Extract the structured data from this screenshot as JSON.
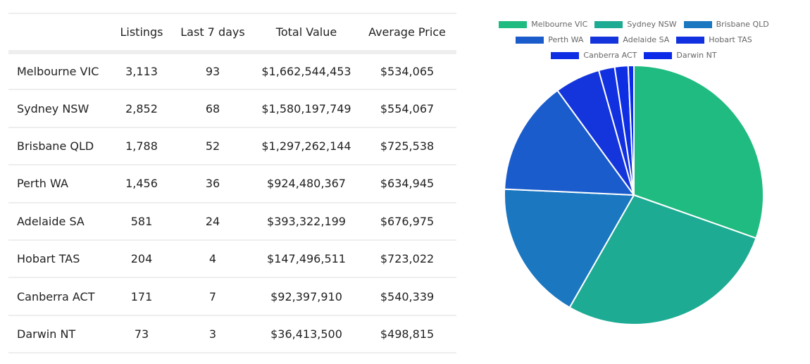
{
  "table": {
    "headers": [
      "",
      "Listings",
      "Last 7 days",
      "Total Value",
      "Average Price"
    ],
    "rows": [
      [
        "Melbourne VIC",
        "3,113",
        "93",
        "$1,662,544,453",
        "$534,065"
      ],
      [
        "Sydney NSW",
        "2,852",
        "68",
        "$1,580,197,749",
        "$554,067"
      ],
      [
        "Brisbane QLD",
        "1,788",
        "52",
        "$1,297,262,144",
        "$725,538"
      ],
      [
        "Perth WA",
        "1,456",
        "36",
        "$924,480,367",
        "$634,945"
      ],
      [
        "Adelaide SA",
        "581",
        "24",
        "$393,322,199",
        "$676,975"
      ],
      [
        "Hobart TAS",
        "204",
        "4",
        "$147,496,511",
        "$723,022"
      ],
      [
        "Canberra ACT",
        "171",
        "7",
        "$92,397,910",
        "$540,339"
      ],
      [
        "Darwin NT",
        "73",
        "3",
        "$36,413,500",
        "$498,815"
      ]
    ]
  },
  "chart_data": {
    "type": "pie",
    "categories": [
      "Melbourne VIC",
      "Sydney NSW",
      "Brisbane QLD",
      "Perth WA",
      "Adelaide SA",
      "Hobart TAS",
      "Canberra ACT",
      "Darwin NT"
    ],
    "values": [
      3113,
      2852,
      1788,
      1456,
      581,
      204,
      171,
      73
    ],
    "colors": [
      "#20bb80",
      "#1dab93",
      "#1a77c0",
      "#1a5ccc",
      "#1535dc",
      "#1130e0",
      "#0e2ee4",
      "#0a2ae8"
    ],
    "legend_position": "top",
    "title": ""
  }
}
